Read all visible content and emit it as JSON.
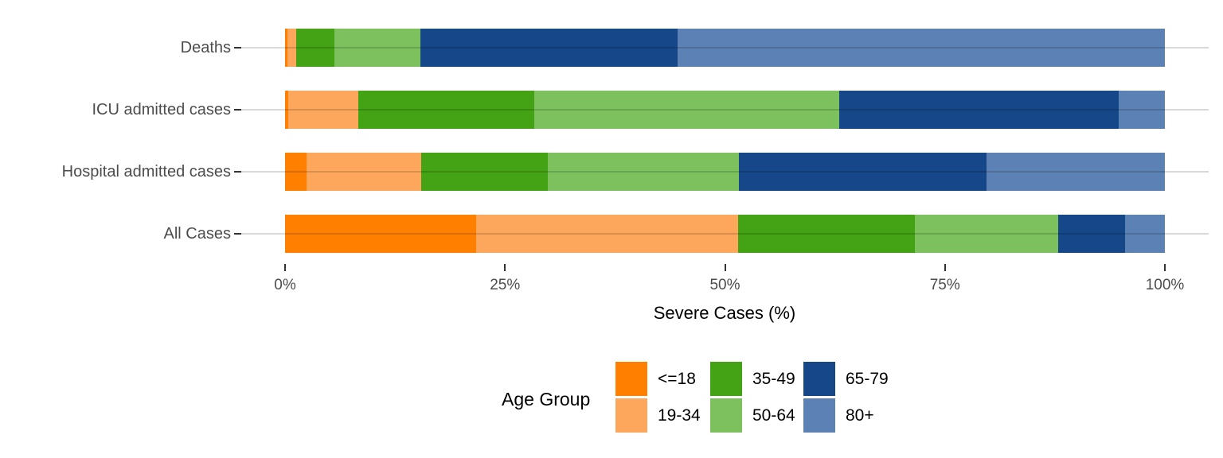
{
  "chart_data": {
    "type": "bar",
    "orientation": "horizontal",
    "stacked": true,
    "title": "",
    "xlabel": "Severe Cases (%)",
    "ylabel": "",
    "xlim": [
      0,
      100
    ],
    "grid": "horizontal-major",
    "x_ticks": {
      "values": [
        0,
        25,
        50,
        75,
        100
      ],
      "labels": [
        "0%",
        "25%",
        "50%",
        "75%",
        "100%"
      ]
    },
    "categories": [
      "Deaths",
      "ICU admitted cases",
      "Hospital admitted cases",
      "All Cases"
    ],
    "series": [
      {
        "name": "<=18",
        "color": "#FF7F00",
        "values": [
          0.3,
          0.4,
          2.4,
          21.7
        ]
      },
      {
        "name": "19-34",
        "color": "#FDA75D",
        "values": [
          1.0,
          7.9,
          13.1,
          29.8
        ]
      },
      {
        "name": "35-49",
        "color": "#43A315",
        "values": [
          4.3,
          20.0,
          14.4,
          20.1
        ]
      },
      {
        "name": "50-64",
        "color": "#7CC15D",
        "values": [
          9.8,
          34.7,
          21.7,
          16.3
        ]
      },
      {
        "name": "65-79",
        "color": "#164889",
        "values": [
          29.2,
          31.8,
          28.1,
          7.6
        ]
      },
      {
        "name": "80+",
        "color": "#5C81B4",
        "values": [
          55.4,
          5.2,
          20.3,
          4.5
        ]
      }
    ],
    "legend": {
      "title": "Age Group",
      "position": "bottom",
      "entries": [
        "<=18",
        "19-34",
        "35-49",
        "50-64",
        "65-79",
        "80+"
      ]
    }
  }
}
